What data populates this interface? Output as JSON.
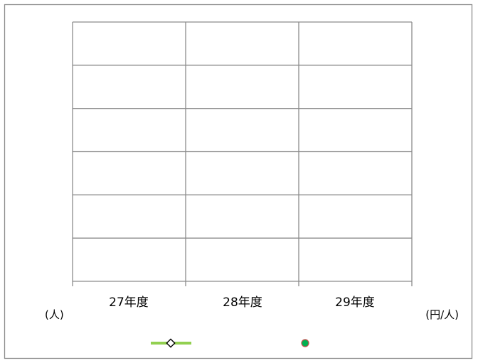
{
  "chart_data": {
    "type": "line",
    "categories": [
      "27年度",
      "28年度",
      "29年度"
    ],
    "series": [
      {
        "values": [
          null,
          null,
          null
        ],
        "marker": "diamond-open",
        "color": "#92d050"
      },
      {
        "values": [
          null,
          null,
          null
        ],
        "marker": "circle",
        "color": "#00b050",
        "edge_color": "#c0504d"
      }
    ],
    "left_axis_unit": "(人)",
    "right_axis_unit": "(円/人)",
    "horizontal_gridlines": 6,
    "vertical_gridlines": true,
    "legend_position": "bottom",
    "colors": {
      "grid": "#8c8c8c",
      "frame": "#8c8c8c"
    }
  }
}
